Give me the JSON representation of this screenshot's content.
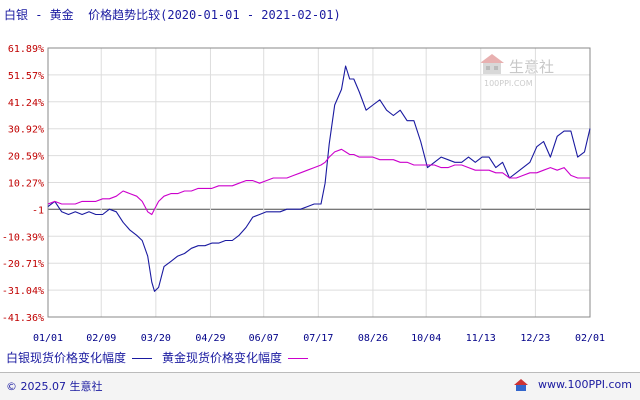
{
  "title": "白银 - 黄金  价格趋势比较(2020-01-01 - 2021-02-01)",
  "watermark": {
    "cn": "生意社",
    "en": "100PPI.COM"
  },
  "legend": [
    {
      "label": "白银现货价格变化幅度",
      "color": "#1a1aa0"
    },
    {
      "label": "黄金现货价格变化幅度",
      "color": "#cc00cc"
    }
  ],
  "footer": {
    "copyright": "© 2025.07 生意社",
    "site": "www.100PPI.com"
  },
  "chart_data": {
    "type": "line",
    "title": "白银 - 黄金  价格趋势比较(2020-01-01 - 2021-02-01)",
    "ylim": [
      -41.36,
      61.89
    ],
    "xlim": [
      "2020-01-01",
      "2021-02-01"
    ],
    "y_ticks": [
      "61.89%",
      "51.57%",
      "41.24%",
      "30.92%",
      "20.59%",
      "10.27%",
      "-1",
      "-10.39%",
      "-20.71%",
      "-31.04%",
      "-41.36%"
    ],
    "x_ticks": [
      {
        "label": "01/01",
        "date": "2020-01-01"
      },
      {
        "label": "02/09",
        "date": "2020-02-09"
      },
      {
        "label": "03/20",
        "date": "2020-03-20"
      },
      {
        "label": "04/29",
        "date": "2020-04-29"
      },
      {
        "label": "06/07",
        "date": "2020-06-07"
      },
      {
        "label": "07/17",
        "date": "2020-07-17"
      },
      {
        "label": "08/26",
        "date": "2020-08-26"
      },
      {
        "label": "10/04",
        "date": "2020-10-04"
      },
      {
        "label": "11/13",
        "date": "2020-11-13"
      },
      {
        "label": "12/23",
        "date": "2020-12-23"
      },
      {
        "label": "02/01",
        "date": "2021-02-01"
      }
    ],
    "grid": true,
    "legend_position": "bottom",
    "series": [
      {
        "name": "白银现货价格变化幅度",
        "color": "#1a1aa0",
        "x": [
          "2020-01-01",
          "2020-01-06",
          "2020-01-11",
          "2020-01-16",
          "2020-01-21",
          "2020-01-26",
          "2020-01-31",
          "2020-02-05",
          "2020-02-10",
          "2020-02-15",
          "2020-02-20",
          "2020-02-25",
          "2020-03-01",
          "2020-03-06",
          "2020-03-10",
          "2020-03-14",
          "2020-03-17",
          "2020-03-19",
          "2020-03-22",
          "2020-03-26",
          "2020-03-31",
          "2020-04-05",
          "2020-04-10",
          "2020-04-15",
          "2020-04-20",
          "2020-04-25",
          "2020-04-30",
          "2020-05-05",
          "2020-05-10",
          "2020-05-15",
          "2020-05-20",
          "2020-05-25",
          "2020-05-30",
          "2020-06-04",
          "2020-06-09",
          "2020-06-14",
          "2020-06-19",
          "2020-06-24",
          "2020-06-29",
          "2020-07-04",
          "2020-07-09",
          "2020-07-14",
          "2020-07-19",
          "2020-07-22",
          "2020-07-25",
          "2020-07-29",
          "2020-08-03",
          "2020-08-06",
          "2020-08-09",
          "2020-08-12",
          "2020-08-16",
          "2020-08-21",
          "2020-08-26",
          "2020-08-31",
          "2020-09-05",
          "2020-09-10",
          "2020-09-15",
          "2020-09-20",
          "2020-09-25",
          "2020-09-30",
          "2020-10-05",
          "2020-10-10",
          "2020-10-15",
          "2020-10-20",
          "2020-10-25",
          "2020-10-30",
          "2020-11-04",
          "2020-11-09",
          "2020-11-14",
          "2020-11-19",
          "2020-11-24",
          "2020-11-29",
          "2020-12-04",
          "2020-12-09",
          "2020-12-14",
          "2020-12-19",
          "2020-12-24",
          "2020-12-29",
          "2021-01-03",
          "2021-01-08",
          "2021-01-13",
          "2021-01-18",
          "2021-01-23",
          "2021-01-28",
          "2021-02-01"
        ],
        "y": [
          1,
          3,
          -1,
          -2,
          -1,
          -2,
          -1,
          -2,
          -2,
          0,
          -1,
          -5,
          -8,
          -10,
          -12,
          -18,
          -28,
          -31.5,
          -30,
          -22,
          -20,
          -18,
          -17,
          -15,
          -14,
          -14,
          -13,
          -13,
          -12,
          -12,
          -10,
          -7,
          -3,
          -2,
          -1,
          -1,
          -1,
          0,
          0,
          0,
          1,
          2,
          2,
          10,
          25,
          40,
          46,
          55,
          50,
          50,
          45,
          38,
          40,
          42,
          38,
          36,
          38,
          34,
          34,
          26,
          16,
          18,
          20,
          19,
          18,
          18,
          20,
          18,
          20,
          20,
          16,
          18,
          12,
          14,
          16,
          18,
          24,
          26,
          20,
          28,
          30,
          30,
          20,
          22,
          31
        ]
      },
      {
        "name": "黄金现货价格变化幅度",
        "color": "#cc00cc",
        "x": [
          "2020-01-01",
          "2020-01-06",
          "2020-01-11",
          "2020-01-16",
          "2020-01-21",
          "2020-01-26",
          "2020-01-31",
          "2020-02-05",
          "2020-02-10",
          "2020-02-15",
          "2020-02-20",
          "2020-02-25",
          "2020-03-01",
          "2020-03-06",
          "2020-03-10",
          "2020-03-14",
          "2020-03-17",
          "2020-03-19",
          "2020-03-22",
          "2020-03-26",
          "2020-03-31",
          "2020-04-05",
          "2020-04-10",
          "2020-04-15",
          "2020-04-20",
          "2020-04-25",
          "2020-04-30",
          "2020-05-05",
          "2020-05-10",
          "2020-05-15",
          "2020-05-20",
          "2020-05-25",
          "2020-05-30",
          "2020-06-04",
          "2020-06-09",
          "2020-06-14",
          "2020-06-19",
          "2020-06-24",
          "2020-06-29",
          "2020-07-04",
          "2020-07-09",
          "2020-07-14",
          "2020-07-19",
          "2020-07-22",
          "2020-07-25",
          "2020-07-29",
          "2020-08-03",
          "2020-08-06",
          "2020-08-09",
          "2020-08-12",
          "2020-08-16",
          "2020-08-21",
          "2020-08-26",
          "2020-08-31",
          "2020-09-05",
          "2020-09-10",
          "2020-09-15",
          "2020-09-20",
          "2020-09-25",
          "2020-09-30",
          "2020-10-05",
          "2020-10-10",
          "2020-10-15",
          "2020-10-20",
          "2020-10-25",
          "2020-10-30",
          "2020-11-04",
          "2020-11-09",
          "2020-11-14",
          "2020-11-19",
          "2020-11-24",
          "2020-11-29",
          "2020-12-04",
          "2020-12-09",
          "2020-12-14",
          "2020-12-19",
          "2020-12-24",
          "2020-12-29",
          "2021-01-03",
          "2021-01-08",
          "2021-01-13",
          "2021-01-18",
          "2021-01-23",
          "2021-01-28",
          "2021-02-01"
        ],
        "y": [
          2,
          3,
          2,
          2,
          2,
          3,
          3,
          3,
          4,
          4,
          5,
          7,
          6,
          5,
          3,
          -1,
          -2,
          0,
          3,
          5,
          6,
          6,
          7,
          7,
          8,
          8,
          8,
          9,
          9,
          9,
          10,
          11,
          11,
          10,
          11,
          12,
          12,
          12,
          13,
          14,
          15,
          16,
          17,
          18,
          20,
          22,
          23,
          22,
          21,
          21,
          20,
          20,
          20,
          19,
          19,
          19,
          18,
          18,
          17,
          17,
          17,
          17,
          16,
          16,
          17,
          17,
          16,
          15,
          15,
          15,
          14,
          14,
          12,
          12,
          13,
          14,
          14,
          15,
          16,
          15,
          16,
          13,
          12,
          12,
          12
        ]
      }
    ]
  }
}
